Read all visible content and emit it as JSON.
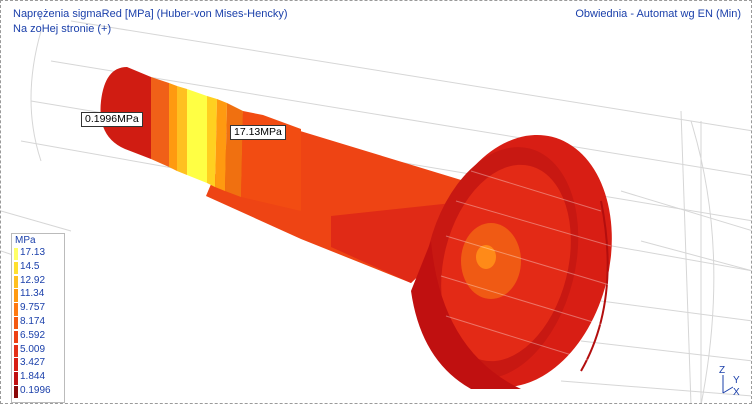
{
  "header": {
    "title": "Naprężenia sigmaRed [MPa]  (Huber-von Mises-Hencky)",
    "subtitle": "Na zoHej stronie (+)",
    "envelope": "Obwiednia - Automat wg EN (Min)"
  },
  "annotations": {
    "min_label": "0.1996MPa",
    "max_label": "17.13MPa"
  },
  "legend": {
    "unit": "MPa",
    "entries": [
      {
        "value": "17.13",
        "color": "#ffff66"
      },
      {
        "value": "14.5",
        "color": "#ffe030"
      },
      {
        "value": "12.92",
        "color": "#ffc020"
      },
      {
        "value": "11.34",
        "color": "#ff9a10"
      },
      {
        "value": "9.757",
        "color": "#ff7a10"
      },
      {
        "value": "8.174",
        "color": "#f45a10"
      },
      {
        "value": "6.592",
        "color": "#ee4214"
      },
      {
        "value": "5.009",
        "color": "#e53018"
      },
      {
        "value": "3.427",
        "color": "#d81e14"
      },
      {
        "value": "1.844",
        "color": "#c01010"
      },
      {
        "value": "0.1996",
        "color": "#8a0808"
      }
    ]
  },
  "axes": {
    "z": "Z",
    "y": "Y",
    "x": "X"
  }
}
